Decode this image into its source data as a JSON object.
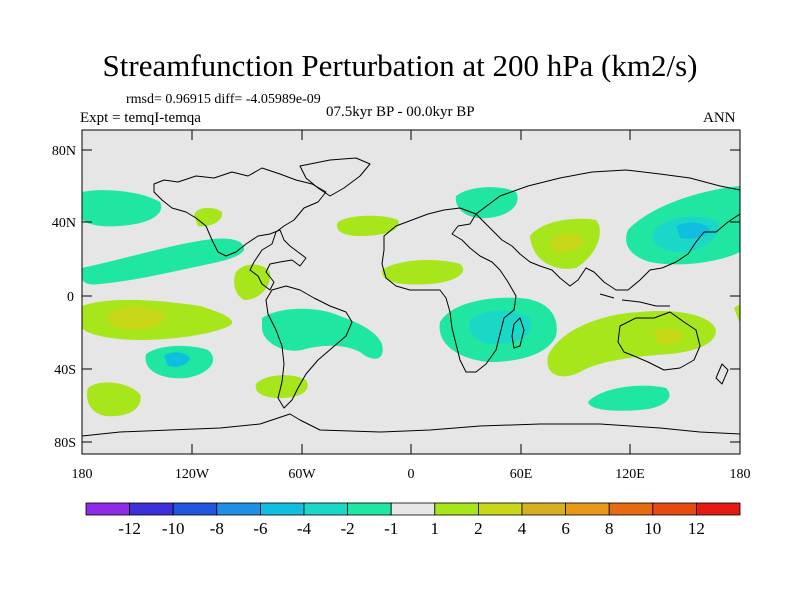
{
  "title": "Streamfunction Perturbation at 200 hPa (km2/s)",
  "stats": "rmsd= 0.96915 diff= -4.05989e-09",
  "experiment": "Expt = temqI-temqa",
  "period": "07.5kyr BP - 00.0kyr BP",
  "season": "ANN",
  "lat_ticks": [
    "80N",
    "40N",
    "0",
    "40S",
    "80S"
  ],
  "lon_ticks": [
    "180",
    "120W",
    "60W",
    "0",
    "60E",
    "120E",
    "180"
  ],
  "colorbar": {
    "colors": [
      "#8f2be6",
      "#3a2fd8",
      "#1f57e0",
      "#1f8fe6",
      "#10bfe0",
      "#1ad8c8",
      "#1fe6a0",
      "#e6e6e6",
      "#a6e61a",
      "#c8d818",
      "#d6b020",
      "#e69a18",
      "#e66a10",
      "#e64a10",
      "#e61a10"
    ],
    "labels": [
      "-12",
      "-10",
      "-8",
      "-6",
      "-4",
      "-2",
      "-1",
      "1",
      "2",
      "4",
      "6",
      "8",
      "10",
      "12"
    ]
  },
  "colors": {
    "land_bg": "#e6e6e6",
    "coast": "#000000"
  }
}
